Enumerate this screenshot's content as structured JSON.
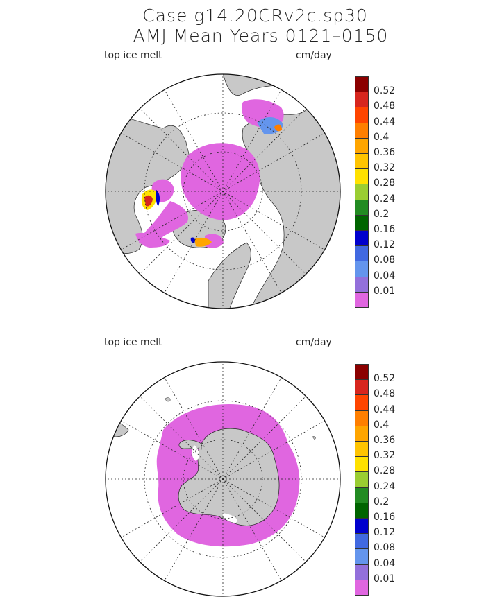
{
  "header": {
    "line1": "Case g14.20CRv2c.sp30",
    "line2": "AMJ Mean   Years 0121–0150"
  },
  "panels": [
    {
      "id": "north",
      "var_label": "top ice melt",
      "units_label": "cm/day",
      "hemisphere": "northern"
    },
    {
      "id": "south",
      "var_label": "top ice melt",
      "units_label": "cm/day",
      "hemisphere": "southern"
    }
  ],
  "colorbar": {
    "labels": [
      "0.52",
      "0.48",
      "0.44",
      "0.4",
      "0.36",
      "0.32",
      "0.28",
      "0.24",
      "0.2",
      "0.16",
      "0.12",
      "0.08",
      "0.04",
      "0.01"
    ],
    "colors": [
      "#8b0000",
      "#d7261e",
      "#ff4500",
      "#ff7f00",
      "#ffa500",
      "#ffc400",
      "#ffe100",
      "#9acd32",
      "#228b22",
      "#006400",
      "#0000cd",
      "#4169e1",
      "#6495ed",
      "#9370db",
      "#e066e0"
    ]
  },
  "colors": {
    "land": "#c8c8c8",
    "ice": "#e066e0",
    "ocean": "#ffffff"
  }
}
